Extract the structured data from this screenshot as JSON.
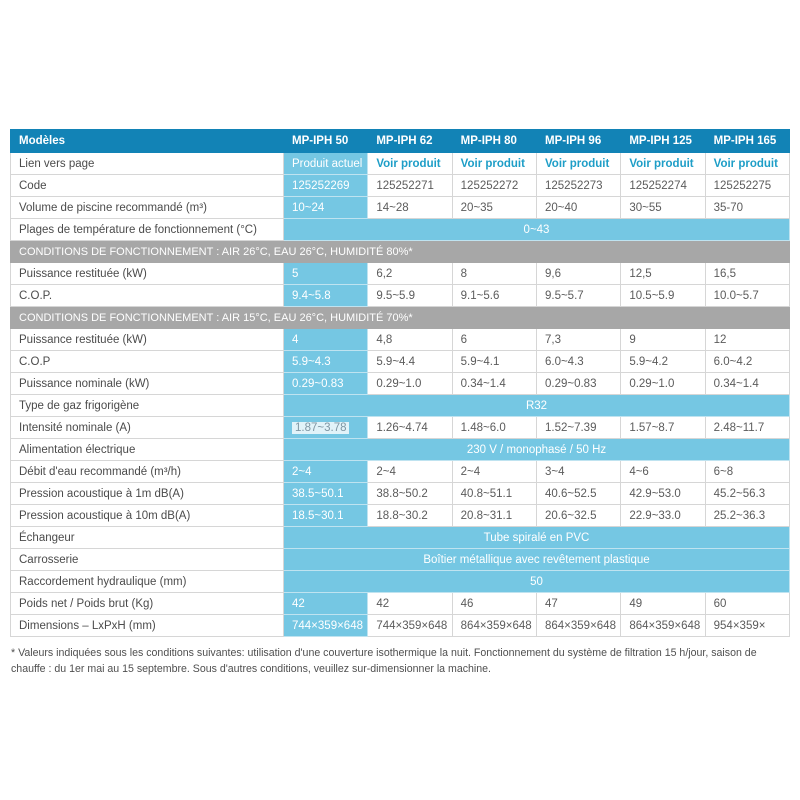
{
  "colors": {
    "header_bg": "#1283b6",
    "header_text": "#ffffff",
    "highlight_bg": "#75c7e3",
    "highlight_text": "#ffffff",
    "section_bg": "#a7a7a7",
    "section_text": "#ffffff",
    "link": "#1e9ec7",
    "label_text": "#4b4b4b",
    "value_text": "#5b5b5b",
    "border": "#d6d6d6",
    "footnote_text": "#4f4f4f",
    "selection_text": "#7e96a3"
  },
  "table": {
    "header_label": "Modèles",
    "models": [
      "MP-IPH 50",
      "MP-IPH 62",
      "MP-IPH 80",
      "MP-IPH 96",
      "MP-IPH 125",
      "MP-IPH 165"
    ],
    "rows": [
      {
        "type": "links",
        "label": "Lien vers page",
        "current": "Produit actuel",
        "link_label": "Voir produit"
      },
      {
        "type": "values",
        "label": "Code",
        "values": [
          "125252269",
          "125252271",
          "125252272",
          "125252273",
          "125252274",
          "125252275"
        ]
      },
      {
        "type": "values",
        "label": "Volume de piscine recommandé (m³)",
        "values": [
          "10~24",
          "14~28",
          "20~35",
          "20~40",
          "30~55",
          "35-70"
        ]
      },
      {
        "type": "span",
        "label": "Plages de température de fonctionnement (°C)",
        "value": "0~43"
      },
      {
        "type": "section",
        "label": "CONDITIONS DE FONCTIONNEMENT : AIR 26°C, EAU 26°C, HUMIDITÉ 80%*"
      },
      {
        "type": "values",
        "label": "Puissance restituée (kW)",
        "values": [
          "5",
          "6,2",
          "8",
          "9,6",
          "12,5",
          "16,5"
        ]
      },
      {
        "type": "values",
        "label": "C.O.P.",
        "values": [
          "9.4~5.8",
          "9.5~5.9",
          "9.1~5.6",
          "9.5~5.7",
          "10.5~5.9",
          "10.0~5.7"
        ]
      },
      {
        "type": "section",
        "label": "CONDITIONS DE FONCTIONNEMENT : AIR 15°C, EAU 26°C, HUMIDITÉ 70%*"
      },
      {
        "type": "values",
        "label": "Puissance restituée (kW)",
        "values": [
          "4",
          "4,8",
          "6",
          "7,3",
          "9",
          "12"
        ]
      },
      {
        "type": "values",
        "label": "C.O.P",
        "values": [
          "5.9~4.3",
          "5.9~4.4",
          "5.9~4.1",
          "6.0~4.3",
          "5.9~4.2",
          "6.0~4.2"
        ]
      },
      {
        "type": "values",
        "label": "Puissance nominale (kW)",
        "values": [
          "0.29~0.83",
          "0.29~1.0",
          "0.34~1.4",
          "0.29~0.83",
          "0.29~1.0",
          "0.34~1.4"
        ]
      },
      {
        "type": "span",
        "label": "Type de gaz frigorigène",
        "value": "R32"
      },
      {
        "type": "values",
        "label": "Intensité nominale (A)",
        "first_selected": true,
        "values": [
          "1.87~3.78",
          "1.26~4.74",
          "1.48~6.0",
          "1.52~7.39",
          "1.57~8.7",
          "2.48~11.7"
        ]
      },
      {
        "type": "span",
        "label": "Alimentation électrique",
        "value": "230 V / monophasé / 50 Hz"
      },
      {
        "type": "values",
        "label": "Débit d'eau recommandé (m³/h)",
        "values": [
          "2~4",
          "2~4",
          "2~4",
          "3~4",
          "4~6",
          "6~8"
        ]
      },
      {
        "type": "values",
        "label": "Pression acoustique à 1m dB(A)",
        "values": [
          "38.5~50.1",
          "38.8~50.2",
          "40.8~51.1",
          "40.6~52.5",
          "42.9~53.0",
          "45.2~56.3"
        ]
      },
      {
        "type": "values",
        "label": "Pression acoustique à 10m dB(A)",
        "values": [
          "18.5~30.1",
          "18.8~30.2",
          "20.8~31.1",
          "20.6~32.5",
          "22.9~33.0",
          "25.2~36.3"
        ]
      },
      {
        "type": "span",
        "label": "Échangeur",
        "value": "Tube spiralé en PVC"
      },
      {
        "type": "span",
        "label": "Carrosserie",
        "value": "Boîtier métallique avec revêtement plastique"
      },
      {
        "type": "span",
        "label": "Raccordement hydraulique (mm)",
        "value": "50"
      },
      {
        "type": "values",
        "label": "Poids net / Poids brut (Kg)",
        "values": [
          "42",
          "42",
          "46",
          "47",
          "49",
          "60"
        ]
      },
      {
        "type": "values",
        "label": "Dimensions – LxPxH (mm)",
        "values": [
          "744×359×648",
          "744×359×648",
          "864×359×648",
          "864×359×648",
          "864×359×648",
          "954×359×"
        ]
      }
    ]
  },
  "footnote": "* Valeurs indiquées sous les conditions suivantes: utilisation d'une couverture isothermique la nuit. Fonctionnement du système de filtration 15 h/jour, saison de chauffe : du 1er mai au 15 septembre. Sous d'autres conditions, veuillez sur-dimensionner la machine."
}
